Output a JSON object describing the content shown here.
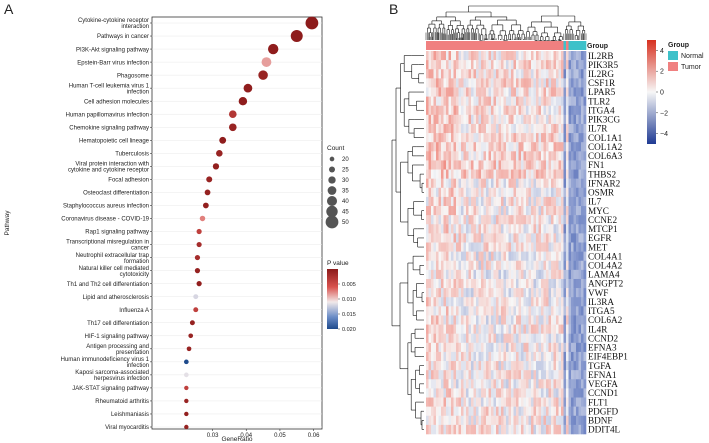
{
  "panels": {
    "a_label": "A",
    "b_label": "B"
  },
  "chart_data": [
    {
      "type": "scatter",
      "subtype": "kegg-bubble",
      "xlabel": "GeneRatio",
      "ylabel": "Pathway",
      "xlim": [
        0.012,
        0.0625
      ],
      "x_ticks": [
        0.03,
        0.04,
        0.05,
        0.06
      ],
      "x_tick_labels": [
        "0.03",
        "0.04",
        "0.05",
        "0.06"
      ],
      "legend_size": {
        "title": "Count",
        "values": [
          20,
          25,
          30,
          35,
          40,
          45,
          50
        ],
        "labels": [
          "20",
          "25",
          "30",
          "35",
          "40",
          "45",
          "50"
        ]
      },
      "legend_color": {
        "title": "P value",
        "range": [
          0,
          0.02
        ],
        "tick_values": [
          0.005,
          0.01,
          0.015,
          0.02
        ],
        "tick_labels": [
          "0.005",
          "0.010",
          "0.015",
          "0.020"
        ]
      },
      "points": [
        {
          "pathway": "Cytokine-cytokine receptor interaction",
          "x": 0.0595,
          "count": 50,
          "p": 0.0001
        },
        {
          "pathway": "Pathways in cancer",
          "x": 0.055,
          "count": 47,
          "p": 0.0002
        },
        {
          "pathway": "PI3K-Akt signaling pathway",
          "x": 0.048,
          "count": 41,
          "p": 0.0003
        },
        {
          "pathway": "Epstein-Barr virus infection",
          "x": 0.046,
          "count": 39,
          "p": 0.0085
        },
        {
          "pathway": "Phagosome",
          "x": 0.045,
          "count": 38,
          "p": 0.001
        },
        {
          "pathway": "Human T-cell leukemia virus 1 infection",
          "x": 0.0405,
          "count": 35,
          "p": 0.0004
        },
        {
          "pathway": "Cell adhesion molecules",
          "x": 0.039,
          "count": 34,
          "p": 0.0003
        },
        {
          "pathway": "Human papillomavirus infection",
          "x": 0.036,
          "count": 31,
          "p": 0.003
        },
        {
          "pathway": "Chemokine signaling pathway",
          "x": 0.036,
          "count": 31,
          "p": 0.001
        },
        {
          "pathway": "Hematopoietic cell lineage",
          "x": 0.033,
          "count": 28,
          "p": 0.0003
        },
        {
          "pathway": "Tuberculosis",
          "x": 0.032,
          "count": 27,
          "p": 0.001
        },
        {
          "pathway": "Viral protein interaction with cytokine and cytokine receptor",
          "x": 0.031,
          "count": 26,
          "p": 0.0005
        },
        {
          "pathway": "Focal adhesion",
          "x": 0.029,
          "count": 25,
          "p": 0.001
        },
        {
          "pathway": "Osteoclast differentiation",
          "x": 0.0285,
          "count": 24,
          "p": 0.0008
        },
        {
          "pathway": "Staphylococcus aureus infection",
          "x": 0.028,
          "count": 24,
          "p": 0.0005
        },
        {
          "pathway": "Coronavirus disease - COVID-19",
          "x": 0.027,
          "count": 23,
          "p": 0.0075
        },
        {
          "pathway": "Rap1 signaling pathway",
          "x": 0.026,
          "count": 22,
          "p": 0.004
        },
        {
          "pathway": "Transcriptional misregulation in cancer",
          "x": 0.026,
          "count": 22,
          "p": 0.002
        },
        {
          "pathway": "Neutrophil extracellular trap formation",
          "x": 0.0255,
          "count": 22,
          "p": 0.002
        },
        {
          "pathway": "Natural killer cell mediated cytotoxicity",
          "x": 0.0255,
          "count": 22,
          "p": 0.0008
        },
        {
          "pathway": "Th1 and Th2 cell differentiation",
          "x": 0.026,
          "count": 22,
          "p": 0.0005
        },
        {
          "pathway": "Lipid and atherosclerosis",
          "x": 0.025,
          "count": 21,
          "p": 0.012
        },
        {
          "pathway": "Influenza A",
          "x": 0.025,
          "count": 21,
          "p": 0.004
        },
        {
          "pathway": "Th17 cell differentiation",
          "x": 0.024,
          "count": 21,
          "p": 0.0008
        },
        {
          "pathway": "HIF-1 signaling pathway",
          "x": 0.0235,
          "count": 20,
          "p": 0.001
        },
        {
          "pathway": "Antigen processing and presentation",
          "x": 0.023,
          "count": 20,
          "p": 0.001
        },
        {
          "pathway": "Human immunodeficiency virus 1 infection",
          "x": 0.0222,
          "count": 20,
          "p": 0.0205
        },
        {
          "pathway": "Kaposi sarcoma-associated herpesvirus infection",
          "x": 0.0222,
          "count": 20,
          "p": 0.0115
        },
        {
          "pathway": "JAK-STAT signaling pathway",
          "x": 0.0222,
          "count": 19,
          "p": 0.004
        },
        {
          "pathway": "Rheumatoid arthritis",
          "x": 0.0222,
          "count": 19,
          "p": 0.001
        },
        {
          "pathway": "Leishmaniasis",
          "x": 0.0222,
          "count": 19,
          "p": 0.0006
        },
        {
          "pathway": "Viral myocarditis",
          "x": 0.0222,
          "count": 19,
          "p": 0.0008
        }
      ]
    },
    {
      "type": "heatmap",
      "annotation_label": "Group",
      "legend_group": {
        "title": "Group",
        "entries": [
          {
            "label": "Normal",
            "color": "#3ec1c9"
          },
          {
            "label": "Tumor",
            "color": "#f08080"
          }
        ]
      },
      "legend_scale": {
        "range": [
          -5,
          5
        ],
        "tick_values": [
          4,
          2,
          0,
          -2,
          -4
        ],
        "tick_labels": [
          "4",
          "2",
          "0",
          "−2",
          "−4"
        ]
      },
      "sample_groups": {
        "tumor_fraction": 0.866,
        "normal_blocks_fraction": [
          [
            0.866,
            0.874
          ],
          [
            0.894,
            1.0
          ]
        ]
      },
      "genes": [
        "IL2RB",
        "PIK3R5",
        "IL2RG",
        "CSF1R",
        "LPAR5",
        "TLR2",
        "ITGA4",
        "PIK3CG",
        "IL7R",
        "COL1A1",
        "COL1A2",
        "COL6A3",
        "FN1",
        "THBS2",
        "IFNAR2",
        "OSMR",
        "IL7",
        "MYC",
        "CCNE2",
        "MTCP1",
        "EGFR",
        "MET",
        "COL4A1",
        "COL4A2",
        "LAMA4",
        "ANGPT2",
        "VWF",
        "IL3RA",
        "ITGA5",
        "COL6A2",
        "IL4R",
        "CCND2",
        "EFNA3",
        "EIF4EBP1",
        "TGFA",
        "EFNA1",
        "VEGFA",
        "CCND1",
        "FLT1",
        "PDGFD",
        "BDNF",
        "DDIT4L"
      ],
      "gene_block_bias": [
        0.25,
        0.25,
        0.25,
        0.25,
        0.25,
        0.25,
        0.25,
        0.25,
        0.25,
        0.35,
        0.35,
        0.35,
        0.35,
        0.35,
        0.12,
        0.12,
        0.12,
        0.12,
        0.12,
        0.12,
        0.12,
        0.12,
        0.05,
        0.05,
        0.05,
        0.05,
        0.05,
        0.08,
        0.08,
        0.08,
        0.08,
        0.08,
        0.08,
        0.08,
        0.08,
        0.08,
        0.08,
        0.08,
        0.15,
        0.15,
        0.15,
        0.15
      ]
    }
  ],
  "colors": {
    "high": "#a50f15",
    "mid": "#f7f7f7",
    "low": "#2c3e96",
    "bubble_high": "#8b1a1a",
    "bubble_low": "#1e4a8c",
    "normal": "#3ec1c9",
    "tumor": "#f08080"
  }
}
